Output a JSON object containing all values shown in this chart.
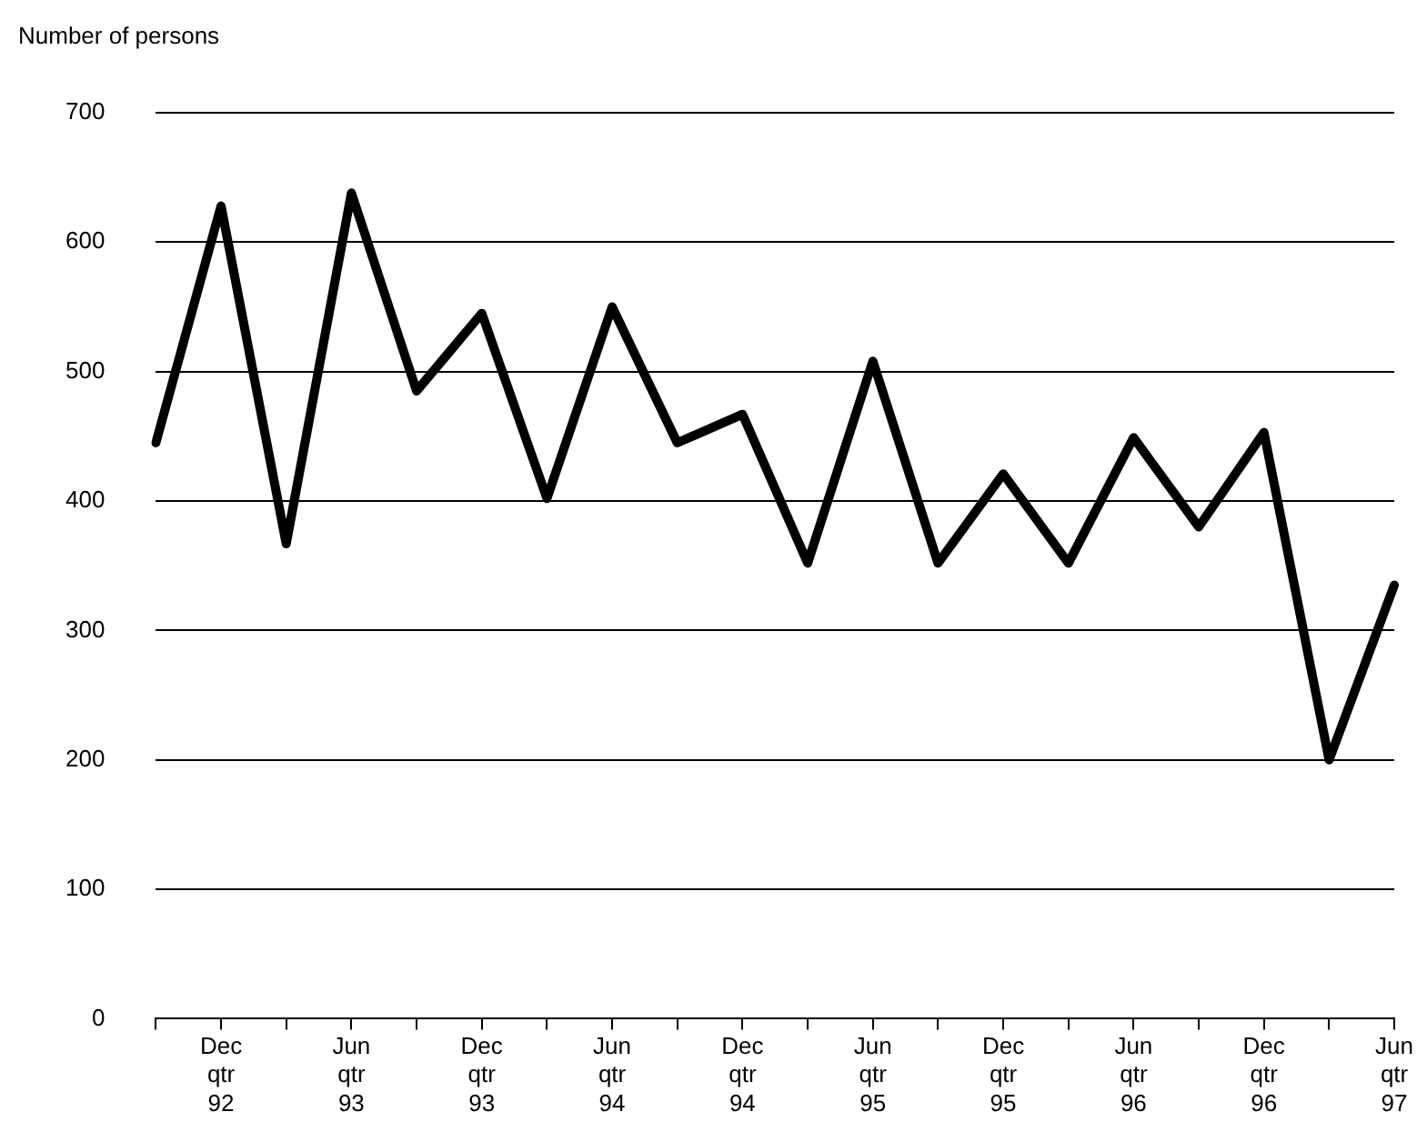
{
  "chart_data": {
    "type": "line",
    "ylabel": "Number of persons",
    "categories": [
      null,
      "Dec\nqtr\n92",
      null,
      "Jun\nqtr\n93",
      null,
      "Dec\nqtr\n93",
      null,
      "Jun\nqtr\n94",
      null,
      "Dec\nqtr\n94",
      null,
      "Jun\nqtr\n95",
      null,
      "Dec\nqtr\n95",
      null,
      "Jun\nqtr\n96",
      null,
      "Dec\nqtr\n96",
      null,
      "Jun\nqtr\n97"
    ],
    "series": [
      {
        "color": "#000000",
        "values": [
          445,
          628,
          367,
          638,
          485,
          545,
          402,
          550,
          445,
          467,
          352,
          508,
          352,
          421,
          352,
          449,
          380,
          453,
          200,
          335
        ]
      }
    ],
    "ylim": [
      0,
      700
    ],
    "yticks": [
      0,
      100,
      200,
      300,
      400,
      500,
      600,
      700
    ],
    "grid": "y",
    "marker": "none",
    "line_style": "solid"
  }
}
